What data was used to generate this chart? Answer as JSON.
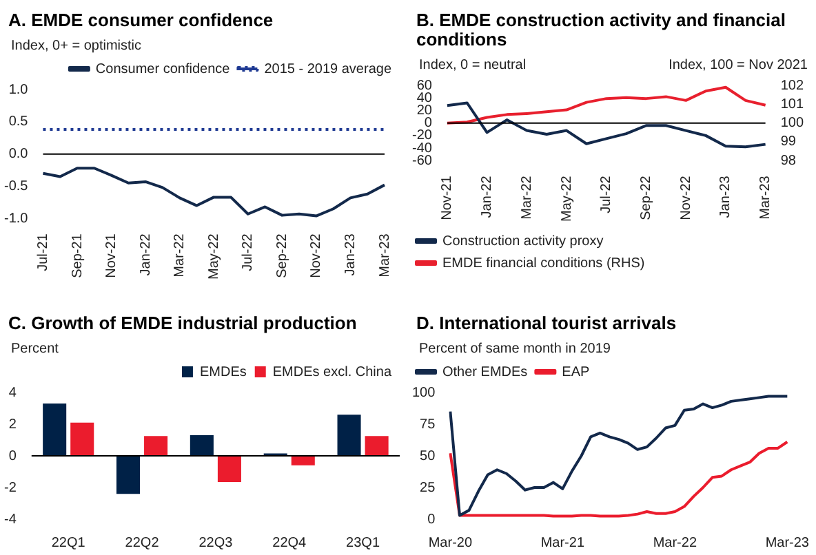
{
  "chart_data": [
    {
      "type": "line",
      "title": "A. EMDE consumer confidence",
      "ylabel": "Index, 0+ = optimistic",
      "categories": [
        "Jul-21",
        null,
        "Sep-21",
        null,
        "Nov-21",
        null,
        "Jan-22",
        null,
        "Mar-22",
        null,
        "May-22",
        null,
        "Jul-22",
        null,
        "Sep-22",
        null,
        "Nov-22",
        null,
        "Jan-23",
        null,
        "Mar-23"
      ],
      "series": [
        {
          "name": "Consumer confidence",
          "color": "#13294b",
          "values": [
            -0.3,
            -0.35,
            -0.22,
            -0.22,
            -0.33,
            -0.45,
            -0.43,
            -0.52,
            -0.68,
            -0.8,
            -0.67,
            -0.67,
            -0.93,
            -0.82,
            -0.95,
            -0.93,
            -0.96,
            -0.85,
            -0.68,
            -0.62,
            -0.48
          ]
        },
        {
          "name": "2015 - 2019 average",
          "color": "#1f3a93",
          "line_style": "dotted",
          "values": [
            0.38,
            0.38,
            0.38,
            0.38,
            0.38,
            0.38,
            0.38,
            0.38,
            0.38,
            0.38,
            0.38,
            0.38,
            0.38,
            0.38,
            0.38,
            0.38,
            0.38,
            0.38,
            0.38,
            0.38,
            0.38
          ]
        }
      ],
      "ylim": [
        -1,
        1
      ],
      "yticks": [
        {
          "value": -1,
          "label": "-1.0"
        },
        {
          "value": -0.5,
          "label": "-0.5"
        },
        {
          "value": 0,
          "label": "0.0"
        },
        {
          "value": 0.5,
          "label": "0.5"
        },
        {
          "value": 1,
          "label": "1.0"
        }
      ],
      "ref_lines": [
        {
          "axis": "y",
          "value": 0,
          "color": "#000000"
        }
      ],
      "legend": "top right"
    },
    {
      "type": "line",
      "title": "B. EMDE construction activity and financial conditions",
      "ylabel": "Index, 0 = neutral",
      "y2label": "Index, 100 = Nov 2021",
      "categories": [
        "Nov-21",
        null,
        "Jan-22",
        null,
        "Mar-22",
        null,
        "May-22",
        null,
        "Jul-22",
        null,
        "Sep-22",
        null,
        "Nov-22",
        null,
        "Jan-23",
        null,
        "Mar-23"
      ],
      "series": [
        {
          "name": "Construction activity proxy",
          "color": "#13294b",
          "values": [
            28,
            32,
            -15,
            5,
            -12,
            -18,
            -12,
            -33,
            -25,
            -17,
            -4,
            -4,
            -12,
            -20,
            -37,
            -38,
            -34
          ]
        },
        {
          "name": "EMDE financial conditions (RHS)",
          "color": "#e8202e",
          "axis": "y2",
          "values": [
            100,
            100.05,
            100.3,
            100.45,
            100.5,
            100.6,
            100.7,
            101.1,
            101.3,
            101.35,
            101.3,
            101.4,
            101.2,
            101.7,
            101.9,
            101.2,
            100.95
          ]
        }
      ],
      "ylim": [
        -60,
        60
      ],
      "yticks": [
        -60,
        -40,
        -20,
        0,
        20,
        40,
        60
      ],
      "y2lim": [
        98,
        102
      ],
      "y2ticks": [
        98,
        99,
        100,
        101,
        102
      ],
      "ref_lines": [
        {
          "axis": "y",
          "value": 0,
          "color": "#000000"
        }
      ],
      "legend": "bottom left"
    },
    {
      "type": "bar",
      "title": "C. Growth of EMDE industrial production",
      "ylabel": "Percent",
      "categories": [
        "22Q1",
        "22Q2",
        "22Q3",
        "22Q4",
        "23Q1"
      ],
      "series": [
        {
          "name": "EMDEs",
          "color": "#002147",
          "values": [
            3.3,
            -2.4,
            1.3,
            0.15,
            2.6
          ]
        },
        {
          "name": "EMDEs excl. China",
          "color": "#eb1c2d",
          "values": [
            2.1,
            1.25,
            -1.65,
            -0.6,
            1.25
          ]
        }
      ],
      "ylim": [
        -4,
        4
      ],
      "yticks": [
        -4,
        -2,
        0,
        2,
        4
      ],
      "ref_lines": [
        {
          "axis": "y",
          "value": 0,
          "color": "#000000"
        }
      ],
      "legend": "top right"
    },
    {
      "type": "line",
      "title": "D. International tourist arrivals",
      "ylabel": "Percent of same month in 2019",
      "categories": [
        "Mar-20",
        null,
        null,
        null,
        null,
        null,
        null,
        null,
        null,
        null,
        null,
        null,
        "Mar-21",
        null,
        null,
        null,
        null,
        null,
        null,
        null,
        null,
        null,
        null,
        null,
        "Mar-22",
        null,
        null,
        null,
        null,
        null,
        null,
        null,
        null,
        null,
        null,
        null,
        "Mar-23"
      ],
      "series": [
        {
          "name": "Other EMDEs",
          "color": "#13294b",
          "values": [
            85,
            3,
            7,
            22,
            35,
            39,
            36,
            30,
            23,
            25,
            25,
            29,
            24,
            38,
            50,
            65,
            68,
            65,
            63,
            60,
            55,
            57,
            64,
            72,
            74,
            86,
            87,
            91,
            88,
            90,
            93,
            94,
            95,
            96,
            97,
            97,
            97
          ]
        },
        {
          "name": "EAP",
          "color": "#eb1c2d",
          "values": [
            52,
            3,
            3,
            3,
            3,
            3,
            3,
            3,
            3,
            3,
            3,
            2.5,
            2.5,
            2.5,
            3,
            3,
            2.5,
            2.5,
            2.5,
            3,
            4,
            6,
            4.5,
            4.5,
            6,
            10,
            18,
            25,
            33,
            34,
            39,
            42,
            45,
            52,
            56,
            56,
            61
          ]
        }
      ],
      "ylim": [
        0,
        100
      ],
      "yticks": [
        0,
        25,
        50,
        75,
        100
      ],
      "legend": "top left"
    }
  ]
}
